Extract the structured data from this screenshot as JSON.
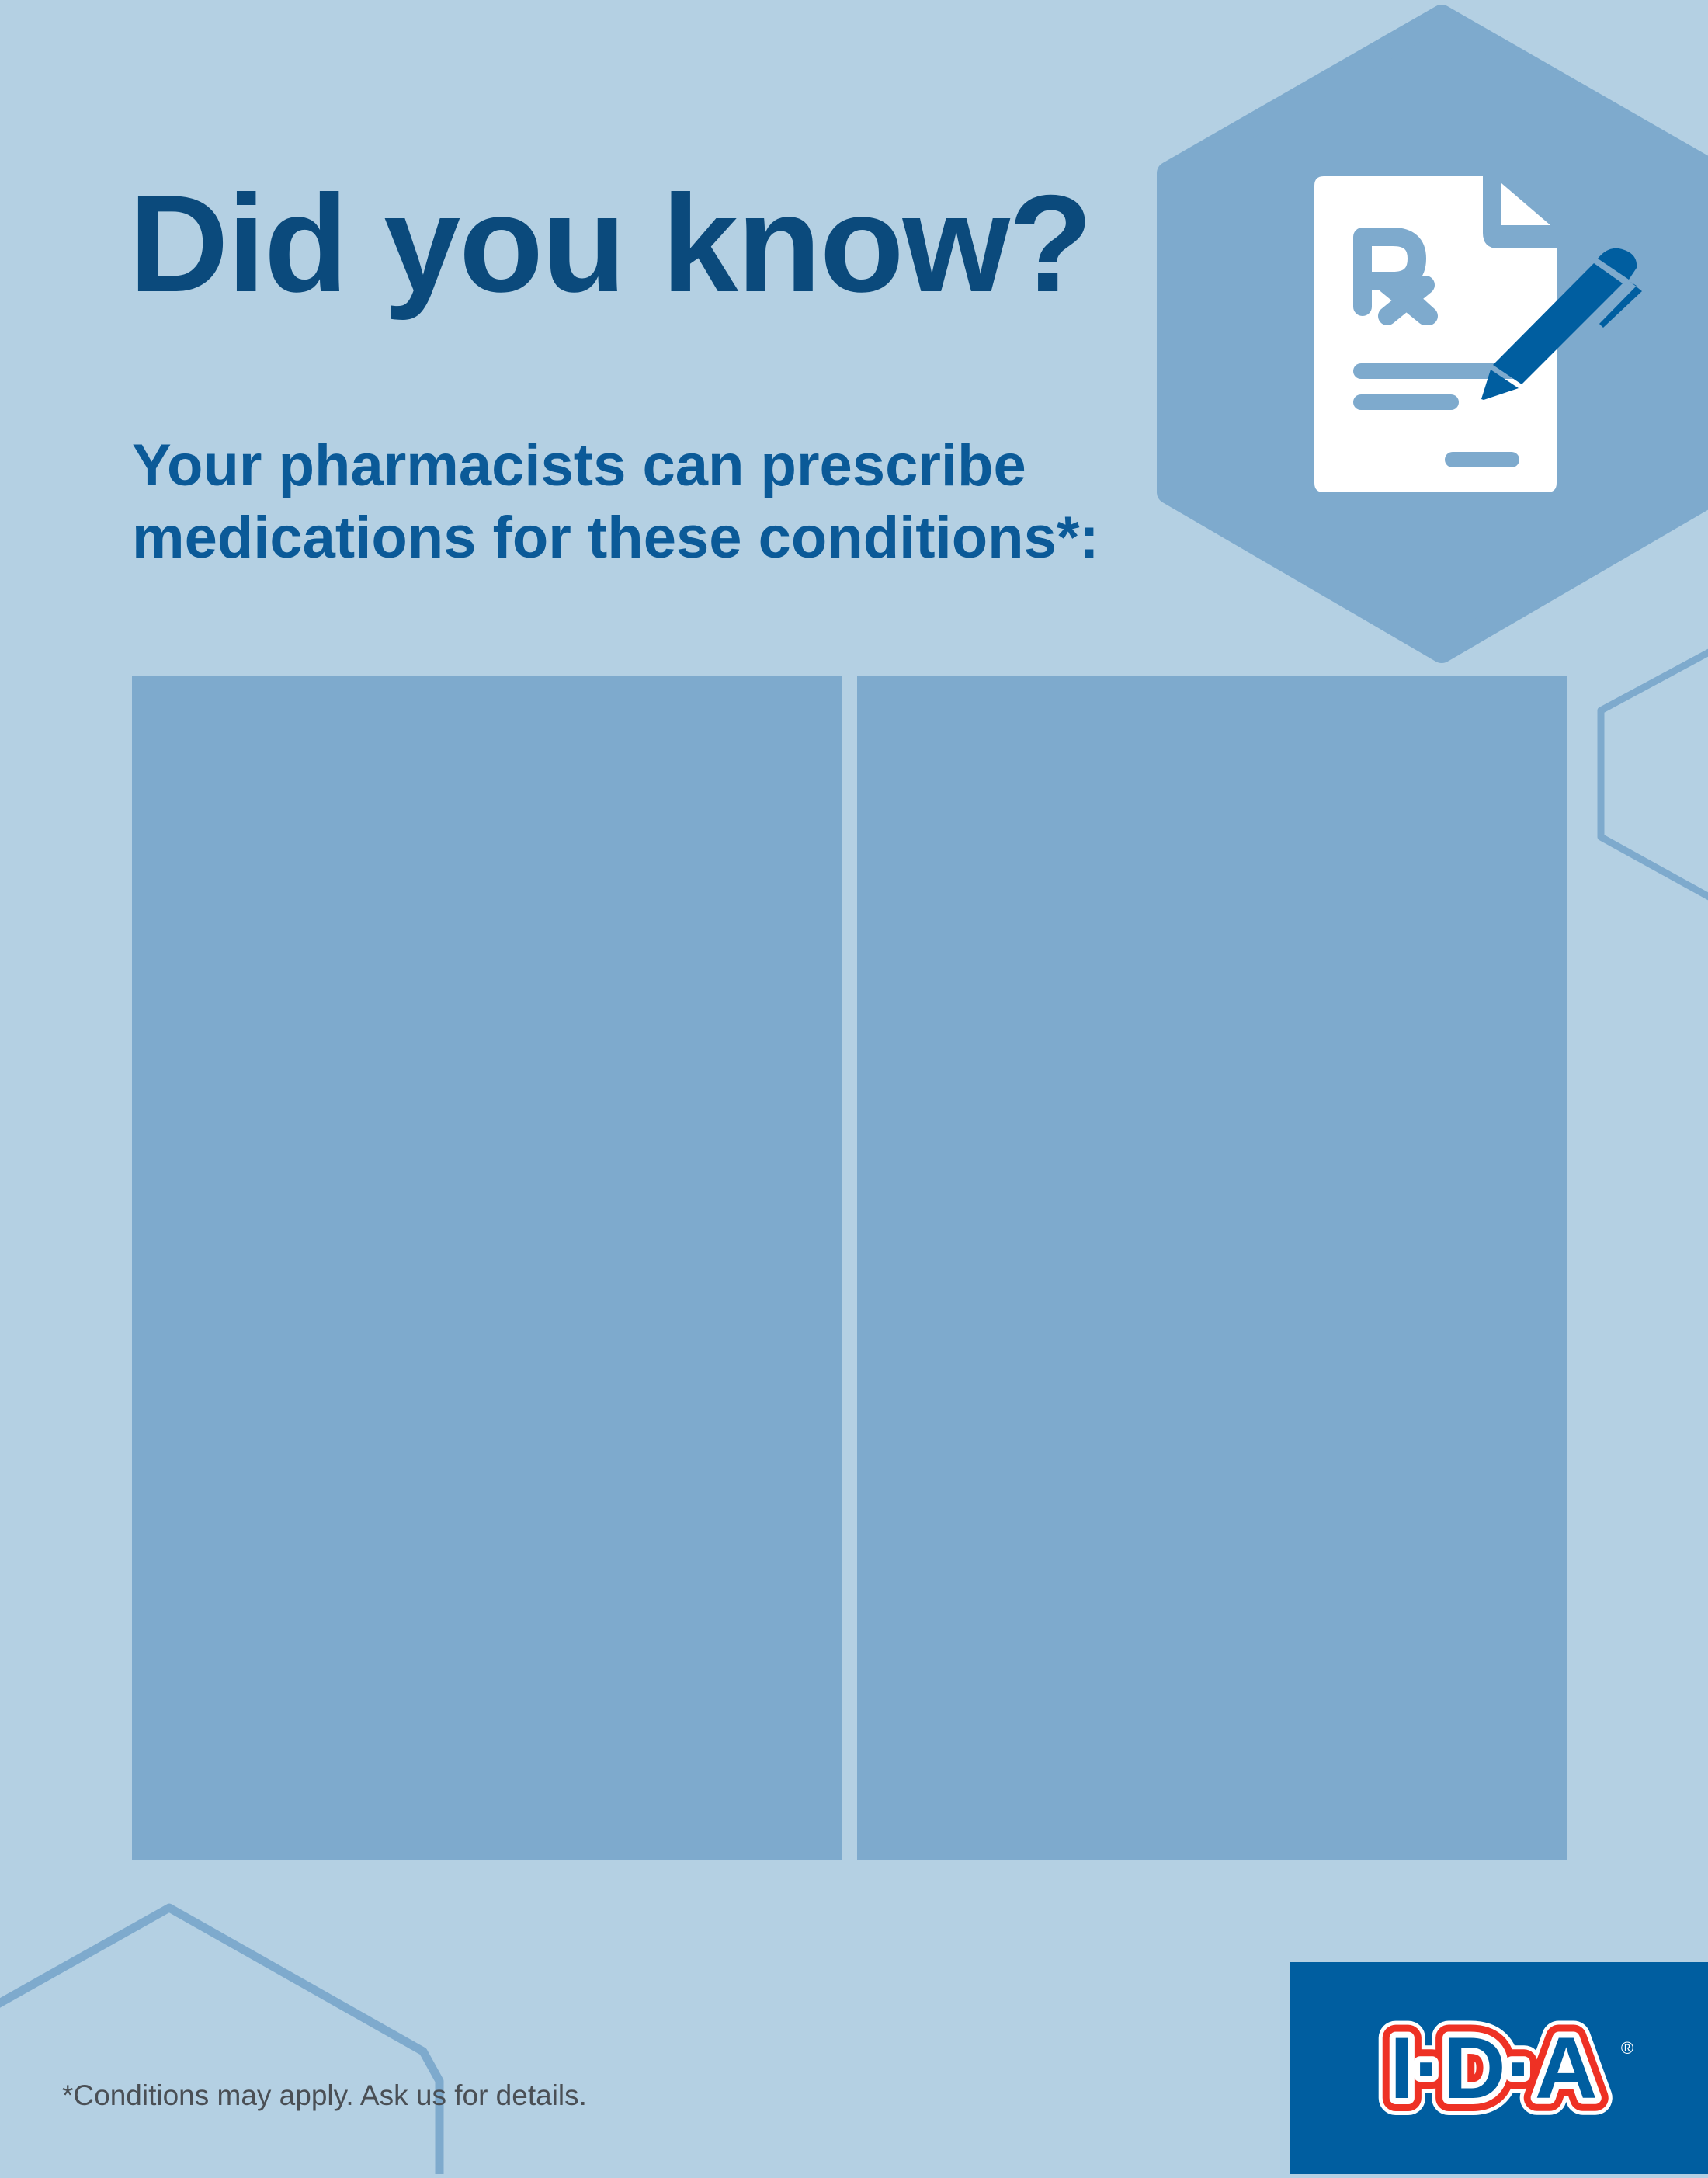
{
  "header": {
    "title": "Did you know?",
    "subtitle_line1": "Your pharmacists can prescribe",
    "subtitle_line2": "medications for these conditions*:"
  },
  "panels": [
    {
      "name": "left-panel",
      "content": ""
    },
    {
      "name": "right-panel",
      "content": ""
    }
  ],
  "footer": {
    "footnote": "*Conditions may apply. Ask us for details."
  },
  "logo": {
    "text": "I·D·A",
    "registered": "®"
  },
  "icons": {
    "hero": "prescription-document-with-pen-icon"
  },
  "colors": {
    "background": "#b4d0e3",
    "panel": "#7eaacd",
    "title": "#0b4a7c",
    "subtitle": "#0b5a98",
    "logo_background": "#005ea0",
    "logo_red": "#ee3124"
  }
}
